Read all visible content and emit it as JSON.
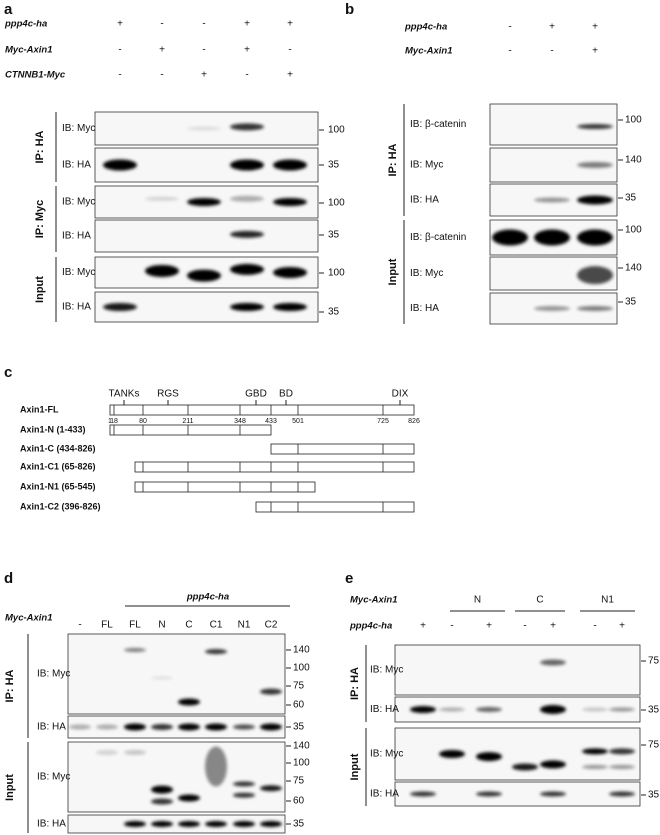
{
  "panel_a": {
    "label": "a",
    "conditions": [
      {
        "name": "ppp4c-ha",
        "lanes": [
          "+",
          "-",
          "-",
          "+",
          "+"
        ]
      },
      {
        "name": "Myc-Axin1",
        "lanes": [
          "-",
          "+",
          "-",
          "+",
          "-"
        ]
      },
      {
        "name": "CTNNB1-Myc",
        "lanes": [
          "-",
          "-",
          "+",
          "-",
          "+"
        ]
      }
    ],
    "groups": [
      {
        "label": "IP: HA",
        "blots": [
          {
            "label": "IB: Myc",
            "markers": [
              "100"
            ]
          },
          {
            "label": "IB: HA",
            "markers": [
              "35"
            ]
          }
        ]
      },
      {
        "label": "IP: Myc",
        "blots": [
          {
            "label": "IB: Myc",
            "markers": [
              "100"
            ]
          },
          {
            "label": "IB: HA",
            "markers": [
              "35"
            ]
          }
        ]
      },
      {
        "label": "Input",
        "blots": [
          {
            "label": "IB: Myc",
            "markers": [
              "100"
            ]
          },
          {
            "label": "IB: HA",
            "markers": [
              "35"
            ]
          }
        ]
      }
    ]
  },
  "panel_b": {
    "label": "b",
    "conditions": [
      {
        "name": "ppp4c-ha",
        "lanes": [
          "-",
          "+",
          "+"
        ]
      },
      {
        "name": "Myc-Axin1",
        "lanes": [
          "-",
          "-",
          "+"
        ]
      }
    ],
    "groups": [
      {
        "label": "IP: HA",
        "blots": [
          {
            "label": "IB: β-catenin",
            "markers": [
              "100"
            ]
          },
          {
            "label": "IB: Myc",
            "markers": [
              "140"
            ]
          },
          {
            "label": "IB: HA",
            "markers": [
              "35"
            ]
          }
        ]
      },
      {
        "label": "Input",
        "blots": [
          {
            "label": "IB: β-catenin",
            "markers": [
              "100"
            ]
          },
          {
            "label": "IB: Myc",
            "markers": [
              "140"
            ]
          },
          {
            "label": "IB: HA",
            "markers": [
              "35"
            ]
          }
        ]
      }
    ]
  },
  "panel_c": {
    "label": "c",
    "domains": [
      "TANKs",
      "RGS",
      "GBD",
      "BD",
      "DIX"
    ],
    "residues": [
      "1",
      "18",
      "80",
      "211",
      "348",
      "433",
      "501",
      "725",
      "826"
    ],
    "constructs": [
      "Axin1-FL",
      "Axin1-N (1-433)",
      "Axin1-C (434-826)",
      "Axin1-C1 (65-826)",
      "Axin1-N1 (65-545)",
      "Axin1-C2 (396-826)"
    ]
  },
  "panel_d": {
    "label": "d",
    "header": "ppp4c-ha",
    "condition": "Myc-Axin1",
    "lanes": [
      "-",
      "FL",
      "FL",
      "N",
      "C",
      "C1",
      "N1",
      "C2"
    ],
    "groups": [
      {
        "label": "IP: HA",
        "blots": [
          {
            "label": "IB: Myc",
            "markers": [
              "140",
              "100",
              "75",
              "60"
            ]
          },
          {
            "label": "IB: HA",
            "markers": [
              "35"
            ]
          }
        ]
      },
      {
        "label": "Input",
        "blots": [
          {
            "label": "IB: Myc",
            "markers": [
              "140",
              "100",
              "75",
              "60"
            ]
          },
          {
            "label": "IB: HA",
            "markers": [
              "35"
            ]
          }
        ]
      }
    ]
  },
  "panel_e": {
    "label": "e",
    "construct_row": {
      "name": "Myc-Axin1",
      "groups": [
        "N",
        "C",
        "N1"
      ]
    },
    "conditions": [
      {
        "name": "ppp4c-ha",
        "lanes": [
          "+",
          "-",
          "+",
          "-",
          "+",
          "-",
          "+"
        ]
      }
    ],
    "groups": [
      {
        "label": "IP: HA",
        "blots": [
          {
            "label": "IB: Myc",
            "markers": [
              "75"
            ]
          },
          {
            "label": "IB: HA",
            "markers": [
              "35"
            ]
          }
        ]
      },
      {
        "label": "Input",
        "blots": [
          {
            "label": "IB: Myc",
            "markers": [
              "75"
            ]
          },
          {
            "label": "IB: HA",
            "markers": [
              "35"
            ]
          }
        ]
      }
    ]
  }
}
